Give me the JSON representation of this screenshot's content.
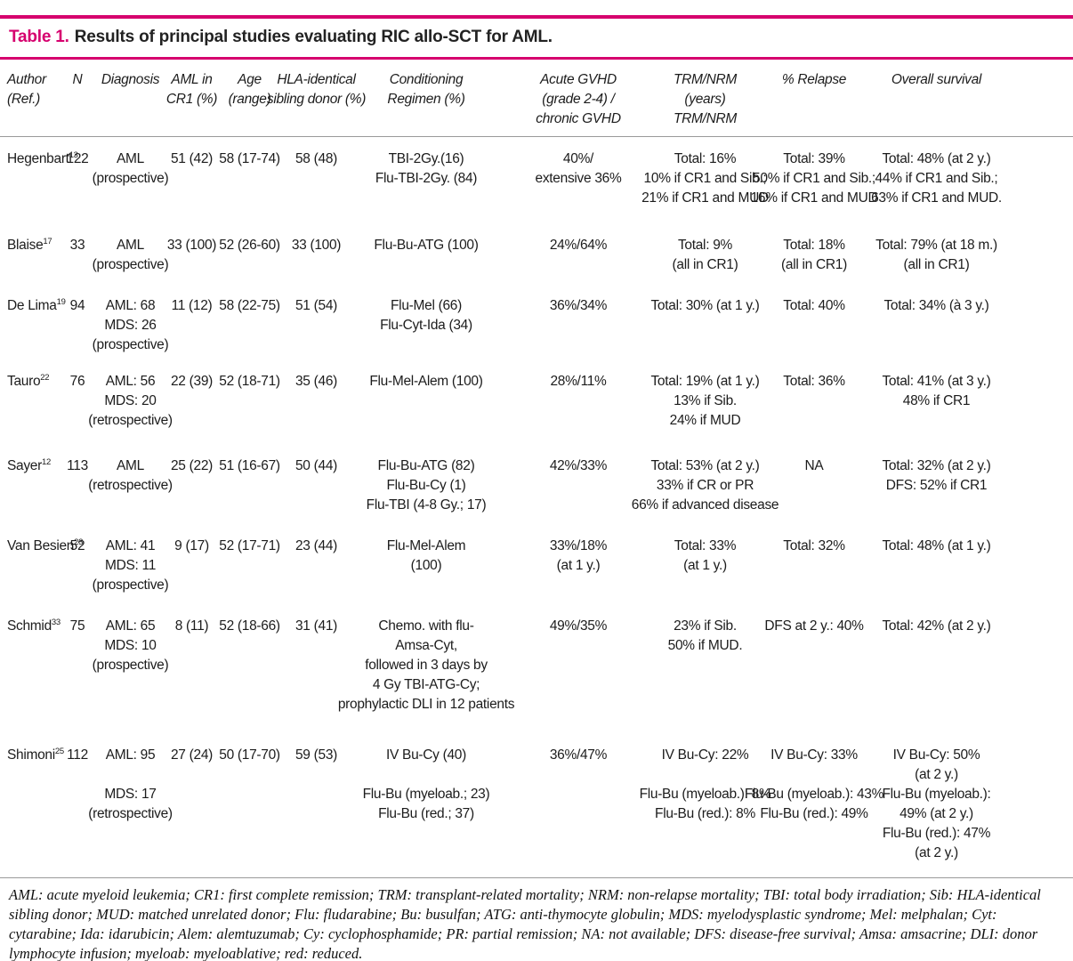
{
  "title": {
    "label": "Table 1.",
    "text": "Results of principal studies evaluating RIC allo-SCT for AML."
  },
  "colors": {
    "accent": "#d6006e",
    "rule_gray": "#9a9a9a"
  },
  "columns": [
    "Author\n(Ref.)",
    "N",
    "Diagnosis",
    "AML in\nCR1 (%)",
    "Age\n(range)",
    "HLA-identical\nsibling donor (%)",
    "Conditioning\nRegimen (%)",
    "Acute GVHD\n(grade 2-4) /\nchronic GVHD",
    "TRM/NRM\n(years)\nTRM/NRM",
    "% Relapse",
    "Overall survival"
  ],
  "rows": [
    {
      "author": "Hegenbart",
      "ref": "13",
      "n": "122",
      "diagnosis": "AML\n(prospective)",
      "cr1": "51 (42)",
      "age": "58 (17-74)",
      "hla": "58 (48)",
      "conditioning": "TBI-2Gy.(16)\nFlu-TBI-2Gy. (84)",
      "gvhd": "40%/\nextensive 36%",
      "trm": "Total: 16%\n10% if CR1 and Sib.;\n21% if CR1 and MUD",
      "relapse": "Total: 39%\n50% if CR1 and Sib.;\n16% if CR1 and MUD",
      "os": "Total: 48% (at 2 y.)\n44% if CR1 and Sib.;\n63% if CR1 and MUD."
    },
    {
      "author": "Blaise",
      "ref": "17",
      "n": "33",
      "diagnosis": "AML\n(prospective)",
      "cr1": "33 (100)",
      "age": "52 (26-60)",
      "hla": "33 (100)",
      "conditioning": "Flu-Bu-ATG (100)",
      "gvhd": "24%/64%",
      "trm": "Total: 9%\n(all in CR1)",
      "relapse": "Total: 18%\n(all in CR1)",
      "os": "Total: 79% (at 18 m.)\n(all in CR1)"
    },
    {
      "author": "De Lima",
      "ref": "19",
      "n": "94",
      "diagnosis": "AML: 68\nMDS: 26\n(prospective)",
      "cr1": "11 (12)",
      "age": "58 (22-75)",
      "hla": "51 (54)",
      "conditioning": "Flu-Mel (66)\nFlu-Cyt-Ida (34)",
      "gvhd": "36%/34%",
      "trm": "Total: 30% (at 1 y.)",
      "relapse": "Total: 40%",
      "os": "Total: 34% (à 3 y.)"
    },
    {
      "author": "Tauro",
      "ref": "22",
      "n": "76",
      "diagnosis": "AML: 56\nMDS: 20\n(retrospective)",
      "cr1": "22 (39)",
      "age": "52 (18-71)",
      "hla": "35 (46)",
      "conditioning": "Flu-Mel-Alem (100)",
      "gvhd": "28%/11%",
      "trm": "Total: 19% (at 1 y.)\n13% if Sib.\n24% if MUD",
      "relapse": "Total: 36%",
      "os": "Total: 41% (at 3 y.)\n48% if CR1"
    },
    {
      "author": "Sayer",
      "ref": "12",
      "n": "113",
      "diagnosis": "AML\n(retrospective)",
      "cr1": "25 (22)",
      "age": "51 (16-67)",
      "hla": "50 (44)",
      "conditioning": "Flu-Bu-ATG (82)\nFlu-Bu-Cy (1)\nFlu-TBI (4-8 Gy.; 17)",
      "gvhd": "42%/33%",
      "trm": "Total: 53% (at 2 y.)\n33% if CR or PR\n66% if advanced disease",
      "relapse": "NA",
      "os": "Total: 32% (at 2 y.)\nDFS: 52% if CR1"
    },
    {
      "author": "Van Besien",
      "ref": "23",
      "n": "52",
      "diagnosis": "AML: 41\nMDS: 11\n(prospective)",
      "cr1": "9 (17)",
      "age": "52 (17-71)",
      "hla": "23 (44)",
      "conditioning": "Flu-Mel-Alem\n(100)",
      "gvhd": "33%/18%\n(at 1 y.)",
      "trm": "Total: 33%\n(at 1 y.)",
      "relapse": "Total: 32%",
      "os": "Total: 48% (at 1 y.)"
    },
    {
      "author": "Schmid",
      "ref": "33",
      "n": "75",
      "diagnosis": "AML: 65\nMDS: 10\n(prospective)",
      "cr1": "8 (11)",
      "age": "52 (18-66)",
      "hla": "31 (41)",
      "conditioning": "Chemo. with flu-\nAmsa-Cyt,\nfollowed in 3 days by\n4 Gy TBI-ATG-Cy;\nprophylactic DLI in 12 patients",
      "gvhd": "49%/35%",
      "trm": "23% if Sib.\n50% if MUD.",
      "relapse": "DFS at 2 y.: 40%",
      "os": "Total: 42% (at 2 y.)"
    },
    {
      "author": "Shimoni",
      "ref": "25",
      "n": "112",
      "diagnosis": "AML: 95\n\nMDS: 17\n(retrospective)",
      "cr1": "27 (24)",
      "age": "50 (17-70)",
      "hla": "59 (53)",
      "conditioning": "IV Bu-Cy (40)\n\nFlu-Bu (myeloab.; 23)\nFlu-Bu (red.; 37)",
      "gvhd": "36%/47%",
      "trm": "IV Bu-Cy: 22%\n\nFlu-Bu (myeloab.): 8%\nFlu-Bu (red.): 8%",
      "relapse": "IV Bu-Cy: 33%\n\nFlu-Bu (myeloab.): 43%\nFlu-Bu (red.): 49%",
      "os": "IV Bu-Cy: 50%\n(at 2 y.)\nFlu-Bu (myeloab.):\n49% (at 2 y.)\nFlu-Bu (red.): 47%\n(at 2 y.)"
    }
  ],
  "footnote": "AML: acute myeloid leukemia; CR1: first complete remission; TRM: transplant-related mortality; NRM: non-relapse mortality; TBI: total body irradiation; Sib: HLA-identical sibling donor; MUD: matched unrelated donor; Flu: fludarabine; Bu: busulfan; ATG: anti-thymocyte globulin; MDS: myelodysplastic syndrome; Mel: melphalan; Cyt: cytarabine; Ida: idarubicin; Alem: alemtuzumab; Cy: cyclophosphamide; PR: partial remission; NA: not available; DFS: disease-free survival; Amsa: amsacrine; DLI: donor lymphocyte infusion; myeloab: myeloablative; red: reduced."
}
